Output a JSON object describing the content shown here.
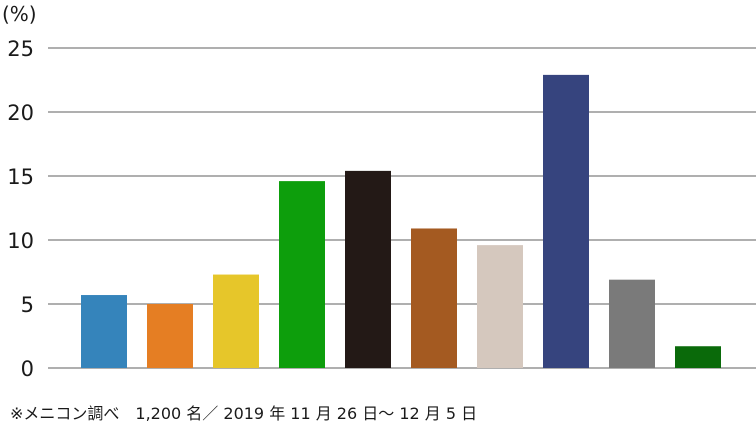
{
  "chart_data": {
    "type": "bar",
    "unit_label": "(%)",
    "categories": [
      "",
      "",
      "",
      "",
      "",
      "",
      "",
      "",
      "",
      ""
    ],
    "values": [
      5.7,
      5.0,
      7.3,
      14.6,
      15.4,
      10.9,
      9.6,
      22.9,
      6.9,
      1.7
    ],
    "colors": [
      "#3584bb",
      "#e57e23",
      "#e6c62a",
      "#0d9e0c",
      "#231916",
      "#a45a21",
      "#d5c8be",
      "#36447e",
      "#7a7a7a",
      "#0a6a0a"
    ],
    "ylim": [
      0,
      25
    ],
    "yticks": [
      0,
      5,
      10,
      15,
      20,
      25
    ],
    "grid": true,
    "legend": "none",
    "source_note": "※メニコン調べ　1,200 名／ 2019 年 11 月 26 日～ 12 月 5 日"
  }
}
